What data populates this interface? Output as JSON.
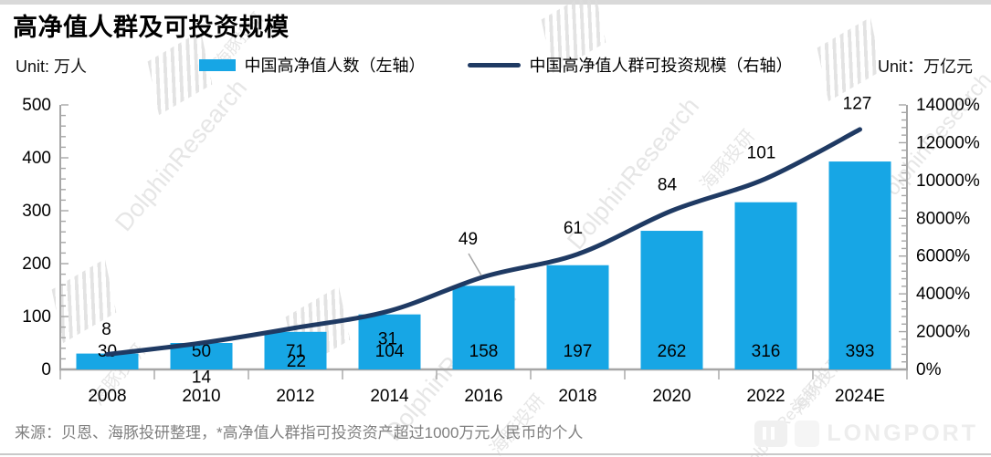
{
  "page": {
    "title": "高净值人群及可投资规模",
    "unit_left": "Unit: 万人",
    "unit_right": "Unit：万亿元",
    "source_note": "来源：贝恩、海豚投研整理，*高净值人群指可投资资产超过1000万元人民币的个人",
    "watermark_text": "DolphinResearch",
    "watermark_text_cn": "海豚投研",
    "brand_logo": "LONGPORT"
  },
  "legend": [
    {
      "label": "中国高净值人数（左轴）",
      "type": "bar",
      "color": "#17a6e5"
    },
    {
      "label": "中国高净值人群可投资规模（右轴）",
      "type": "line",
      "color": "#1f3a63"
    }
  ],
  "chart_data": {
    "type": "bar",
    "subtype": "bar+line combo, dual axis",
    "categories": [
      "2008",
      "2010",
      "2012",
      "2014",
      "2016",
      "2018",
      "2020",
      "2022",
      "2024E"
    ],
    "series": [
      {
        "name": "中国高净值人数（左轴）",
        "type": "bar",
        "axis": "left",
        "color": "#17a6e5",
        "values": [
          30,
          50,
          71,
          104,
          158,
          197,
          262,
          316,
          393
        ]
      },
      {
        "name": "中国高净值人群可投资规模（右轴）",
        "type": "line",
        "axis": "right",
        "color": "#1f3a63",
        "values": [
          8,
          14,
          22,
          31,
          49,
          61,
          84,
          101,
          127
        ]
      }
    ],
    "left_axis": {
      "unit": "万人",
      "min": 0,
      "max": 500,
      "tick_labels": [
        "0",
        "100",
        "200",
        "300",
        "400",
        "500"
      ]
    },
    "right_axis": {
      "unit": "万亿元",
      "min": "0%",
      "max": "14000%",
      "tick_labels": [
        "0%",
        "2000%",
        "4000%",
        "6000%",
        "8000%",
        "10000%",
        "12000%",
        "14000%"
      ]
    },
    "grid": false,
    "legend_position": "top-center",
    "title": "高净值人群及可投资规模"
  }
}
